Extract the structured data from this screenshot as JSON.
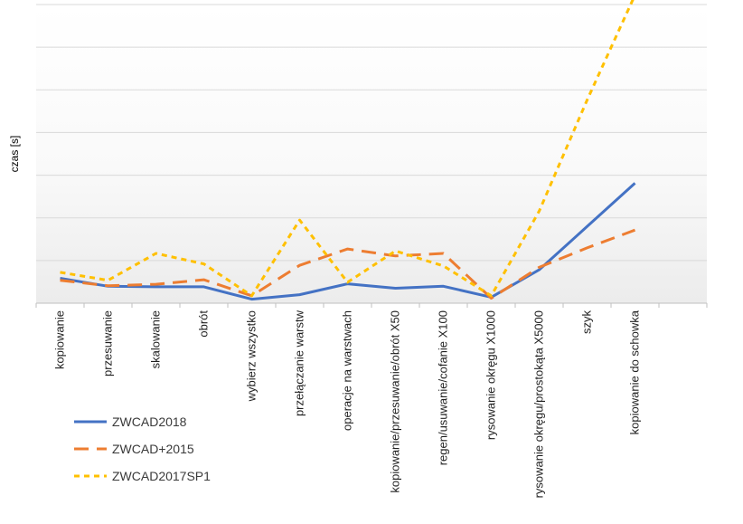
{
  "chart_data": {
    "type": "line",
    "title": "",
    "ylabel": "czas [s]",
    "xlabel": "",
    "ylim": [
      0,
      6
    ],
    "grid": true,
    "legend_position": "bottom-left",
    "categories": [
      "kopiowanie",
      "przesuwanie",
      "skalowanie",
      "obrót",
      "wybierz wszystko",
      "przełączanie warstw",
      "operacje na warstwach",
      "kopiowanie/przesuwanie/obrót X50",
      "regen/usuwanie/cofanie X100",
      "rysowanie okręgu X1000",
      "rysowanie okręgu/prostokąta X5000",
      "szyk",
      "kopiowanie do schowka"
    ],
    "series": [
      {
        "name": "ZWCAD2018",
        "color": "#4472C4",
        "dash": "solid",
        "values": [
          0.5,
          0.34,
          0.33,
          0.33,
          0.08,
          0.17,
          0.39,
          0.3,
          0.34,
          0.12,
          0.67,
          1.54,
          2.41
        ]
      },
      {
        "name": "ZWCAD+2015",
        "color": "#ED7D31",
        "dash": "longdash",
        "values": [
          0.46,
          0.35,
          0.38,
          0.47,
          0.15,
          0.76,
          1.09,
          0.95,
          1.0,
          0.1,
          0.72,
          1.11,
          1.47
        ]
      },
      {
        "name": "ZWCAD2017SP1",
        "color": "#FFC000",
        "dash": "shortdash",
        "values": [
          0.62,
          0.46,
          1.0,
          0.79,
          0.15,
          1.67,
          0.42,
          1.05,
          0.75,
          0.15,
          1.85,
          4.08,
          6.19
        ]
      }
    ]
  }
}
